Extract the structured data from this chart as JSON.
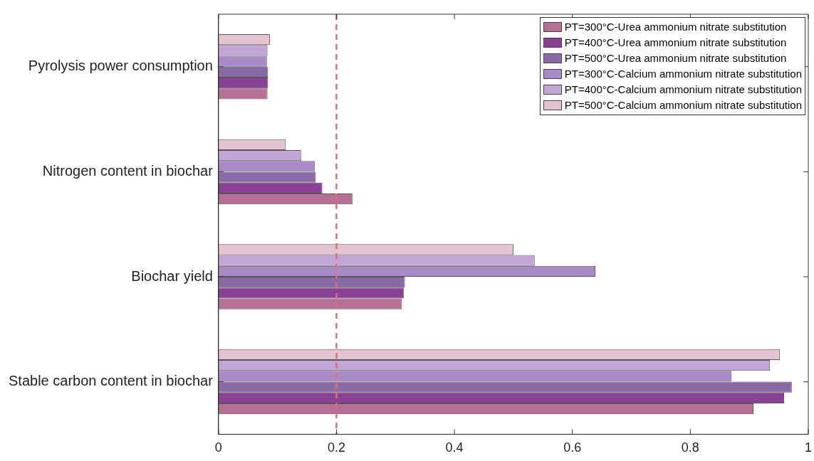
{
  "chart_data": {
    "type": "bar",
    "orientation": "horizontal",
    "categories": [
      "Pyrolysis power consumption",
      "Nitrogen content in biochar",
      "Biochar yield",
      "Stable carbon content in biochar"
    ],
    "series": [
      {
        "name": "PT=300°C-Urea ammonium nitrate substitution",
        "color": "#b86f96",
        "values": [
          0.083,
          0.227,
          0.311,
          0.907
        ]
      },
      {
        "name": "PT=400°C-Urea ammonium nitrate substitution",
        "color": "#8b3f96",
        "values": [
          0.084,
          0.176,
          0.314,
          0.959
        ]
      },
      {
        "name": "PT=500°C-Urea ammonium nitrate substitution",
        "color": "#8a6aa6",
        "values": [
          0.084,
          0.165,
          0.316,
          0.972
        ]
      },
      {
        "name": "PT=300°C-Calcium ammonium nitrate substitution",
        "color": "#a989c8",
        "values": [
          0.082,
          0.163,
          0.639,
          0.87
        ]
      },
      {
        "name": "PT=400°C-Calcium ammonium nitrate substitution",
        "color": "#c3a6d8",
        "values": [
          0.083,
          0.14,
          0.536,
          0.935
        ]
      },
      {
        "name": "PT=500°C-Calcium ammonium nitrate substitution",
        "color": "#e6c3d2",
        "values": [
          0.087,
          0.114,
          0.5,
          0.952
        ]
      }
    ],
    "xlim": [
      0,
      1
    ],
    "xticks": [
      0,
      0.2,
      0.4,
      0.6,
      0.8,
      1
    ],
    "ref_lines": [
      {
        "axis": "x",
        "value": 0.2,
        "color": "#e07070",
        "line_style": "dashed"
      }
    ],
    "legend": "top right",
    "grid": false
  }
}
